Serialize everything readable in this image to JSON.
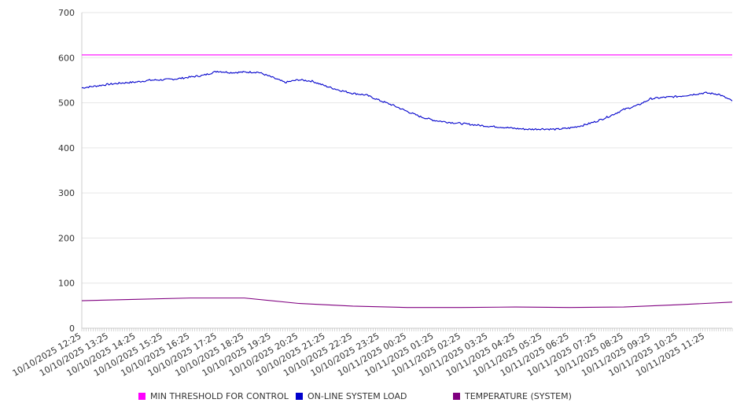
{
  "chart_data": {
    "type": "line",
    "title": "",
    "xlabel": "",
    "ylabel": "",
    "ylim": [
      0,
      700
    ],
    "y_ticks": [
      "0",
      "100",
      "200",
      "300",
      "400",
      "500",
      "600",
      "700"
    ],
    "x_range": [
      "10/10/2025 12:25",
      "10/11/2025 12:25"
    ],
    "x_tick_labels": [
      "10/10/2025 12:25",
      "10/10/2025 13:25",
      "10/10/2025 14:25",
      "10/10/2025 15:25",
      "10/10/2025 16:25",
      "10/10/2025 17:25",
      "10/10/2025 18:25",
      "10/10/2025 19:25",
      "10/10/2025 20:25",
      "10/10/2025 21:25",
      "10/10/2025 22:25",
      "10/10/2025 23:25",
      "10/11/2025 00:25",
      "10/11/2025 01:25",
      "10/11/2025 02:25",
      "10/11/2025 03:25",
      "10/11/2025 04:25",
      "10/11/2025 05:25",
      "10/11/2025 06:25",
      "10/11/2025 07:25",
      "10/11/2025 08:25",
      "10/11/2025 09:25",
      "10/11/2025 10:25",
      "10/11/2025 11:25"
    ],
    "grid": true,
    "legend_position": "bottom",
    "series": [
      {
        "name": "MIN THRESHOLD FOR CONTROL",
        "color": "#ff00ff",
        "x": [
          "10/10/2025 12:25",
          "10/11/2025 12:25"
        ],
        "values": [
          606,
          606
        ]
      },
      {
        "name": "ON-LINE SYSTEM LOAD",
        "color": "#0000cc",
        "x": [
          "10/10/2025 12:25",
          "10/10/2025 12:55",
          "10/10/2025 13:25",
          "10/10/2025 13:55",
          "10/10/2025 14:25",
          "10/10/2025 14:55",
          "10/10/2025 15:25",
          "10/10/2025 15:55",
          "10/10/2025 16:25",
          "10/10/2025 16:55",
          "10/10/2025 17:25",
          "10/10/2025 17:55",
          "10/10/2025 18:25",
          "10/10/2025 18:55",
          "10/10/2025 19:25",
          "10/10/2025 19:55",
          "10/10/2025 20:25",
          "10/10/2025 20:55",
          "10/10/2025 21:25",
          "10/10/2025 21:55",
          "10/10/2025 22:25",
          "10/10/2025 22:55",
          "10/10/2025 23:25",
          "10/10/2025 23:55",
          "10/11/2025 00:25",
          "10/11/2025 00:55",
          "10/11/2025 01:25",
          "10/11/2025 01:55",
          "10/11/2025 02:25",
          "10/11/2025 02:55",
          "10/11/2025 03:25",
          "10/11/2025 03:55",
          "10/11/2025 04:25",
          "10/11/2025 04:55",
          "10/11/2025 05:25",
          "10/11/2025 05:55",
          "10/11/2025 06:25",
          "10/11/2025 06:55",
          "10/11/2025 07:25",
          "10/11/2025 07:55",
          "10/11/2025 08:25",
          "10/11/2025 08:55",
          "10/11/2025 09:25",
          "10/11/2025 09:55",
          "10/11/2025 10:25",
          "10/11/2025 10:55",
          "10/11/2025 11:25",
          "10/11/2025 11:55",
          "10/11/2025 12:25"
        ],
        "values": [
          533,
          537,
          541,
          544,
          546,
          550,
          551,
          553,
          557,
          561,
          570,
          567,
          568,
          568,
          557,
          545,
          551,
          548,
          537,
          528,
          521,
          517,
          505,
          494,
          481,
          469,
          461,
          457,
          454,
          451,
          448,
          446,
          443,
          441,
          442,
          441,
          444,
          450,
          459,
          471,
          485,
          494,
          509,
          512,
          514,
          518,
          522,
          519,
          504
        ]
      },
      {
        "name": "TEMPERATURE (SYSTEM)",
        "color": "#800080",
        "x": [
          "10/10/2025 12:25",
          "10/10/2025 14:25",
          "10/10/2025 16:25",
          "10/10/2025 18:25",
          "10/10/2025 20:25",
          "10/10/2025 22:25",
          "10/11/2025 00:25",
          "10/11/2025 02:25",
          "10/11/2025 04:25",
          "10/11/2025 06:25",
          "10/11/2025 08:25",
          "10/11/2025 10:25",
          "10/11/2025 12:25"
        ],
        "values": [
          61,
          64,
          67,
          67,
          55,
          49,
          46,
          46,
          47,
          46,
          47,
          52,
          58
        ]
      }
    ]
  }
}
